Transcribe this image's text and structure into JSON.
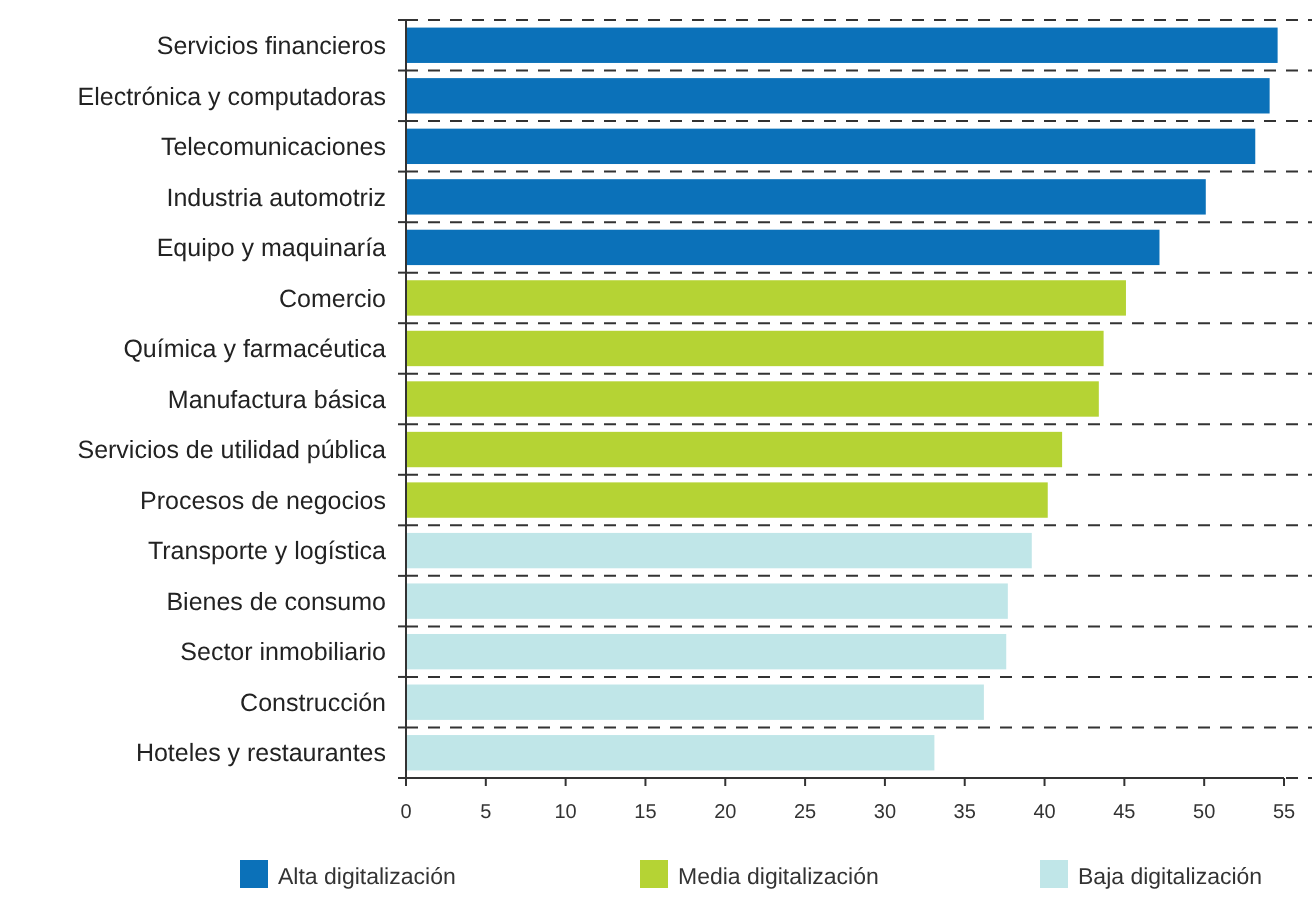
{
  "chart_data": {
    "type": "bar",
    "orientation": "horizontal",
    "categories": [
      "Servicios financieros",
      "Electrónica y computadoras",
      "Telecomunicaciones",
      "Industria automotriz",
      "Equipo y maquinaría",
      "Comercio",
      "Química y farmacéutica",
      "Manufactura básica",
      "Servicios de utilidad pública",
      "Procesos de negocios",
      "Transporte y logística",
      "Bienes de consumo",
      "Sector inmobiliario",
      "Construcción",
      "Hoteles y  restaurantes"
    ],
    "series": [
      {
        "name": "Alta digitalización",
        "color": "#0b71b9",
        "values": [
          54.6,
          54.1,
          53.2,
          50.1,
          47.2,
          null,
          null,
          null,
          null,
          null,
          null,
          null,
          null,
          null,
          null
        ]
      },
      {
        "name": "Media digitalización",
        "color": "#b5d334",
        "values": [
          null,
          null,
          null,
          null,
          null,
          45.1,
          43.7,
          43.4,
          41.1,
          40.2,
          null,
          null,
          null,
          null,
          null
        ]
      },
      {
        "name": "Baja digitalización",
        "color": "#c0e6e8",
        "values": [
          null,
          null,
          null,
          null,
          null,
          null,
          null,
          null,
          null,
          null,
          39.2,
          37.7,
          37.6,
          36.2,
          33.1
        ]
      }
    ],
    "xlim": [
      0,
      55
    ],
    "xticks": [
      0,
      5,
      10,
      15,
      20,
      25,
      30,
      35,
      40,
      45,
      50,
      55
    ],
    "grid": "y",
    "legend": "bottom"
  }
}
